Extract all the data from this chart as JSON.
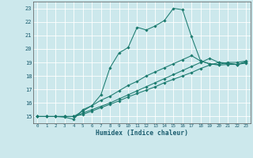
{
  "xlabel": "Humidex (Indice chaleur)",
  "bg_color": "#cce8ec",
  "line_color": "#1a7a6e",
  "grid_color": "#ffffff",
  "xlim": [
    -0.5,
    23.5
  ],
  "ylim": [
    14.5,
    23.5
  ],
  "yticks": [
    15,
    16,
    17,
    18,
    19,
    20,
    21,
    22,
    23
  ],
  "xticks": [
    0,
    1,
    2,
    3,
    4,
    5,
    6,
    7,
    8,
    9,
    10,
    11,
    12,
    13,
    14,
    15,
    16,
    17,
    18,
    19,
    20,
    21,
    22,
    23
  ],
  "line1_x": [
    0,
    1,
    2,
    3,
    4,
    5,
    6,
    7,
    8,
    9,
    10,
    11,
    12,
    13,
    14,
    15,
    16,
    17,
    18,
    19,
    20,
    21,
    22,
    23
  ],
  "line1_y": [
    15.0,
    15.0,
    15.0,
    14.95,
    14.8,
    15.5,
    15.8,
    16.6,
    18.6,
    19.7,
    20.1,
    21.6,
    21.4,
    21.7,
    22.1,
    23.0,
    22.9,
    20.9,
    19.1,
    18.9,
    18.85,
    19.0,
    19.0,
    19.1
  ],
  "line2_x": [
    0,
    1,
    2,
    3,
    4,
    5,
    6,
    7,
    8,
    9,
    10,
    11,
    12,
    13,
    14,
    15,
    16,
    17,
    18,
    19,
    20,
    21,
    22,
    23
  ],
  "line2_y": [
    15.0,
    15.0,
    15.0,
    15.0,
    15.0,
    15.25,
    15.5,
    15.75,
    16.0,
    16.3,
    16.6,
    16.9,
    17.2,
    17.5,
    17.8,
    18.1,
    18.4,
    18.7,
    19.0,
    19.3,
    19.0,
    18.9,
    18.85,
    19.0
  ],
  "line3_x": [
    0,
    1,
    2,
    3,
    4,
    5,
    6,
    7,
    8,
    9,
    10,
    11,
    12,
    13,
    14,
    15,
    16,
    17,
    18,
    19,
    20,
    21,
    22,
    23
  ],
  "line3_y": [
    15.0,
    15.0,
    15.0,
    15.0,
    15.0,
    15.4,
    15.8,
    16.2,
    16.5,
    16.9,
    17.3,
    17.6,
    18.0,
    18.3,
    18.6,
    18.9,
    19.2,
    19.5,
    19.1,
    18.9,
    18.8,
    18.85,
    18.85,
    18.95
  ],
  "line4_x": [
    0,
    1,
    2,
    3,
    4,
    5,
    6,
    7,
    8,
    9,
    10,
    11,
    12,
    13,
    14,
    15,
    16,
    17,
    18,
    19,
    20,
    21,
    22,
    23
  ],
  "line4_y": [
    15.0,
    15.0,
    15.0,
    15.0,
    15.0,
    15.15,
    15.4,
    15.65,
    15.9,
    16.15,
    16.45,
    16.7,
    16.95,
    17.2,
    17.5,
    17.75,
    18.0,
    18.25,
    18.55,
    18.8,
    19.0,
    18.95,
    18.85,
    19.05
  ]
}
